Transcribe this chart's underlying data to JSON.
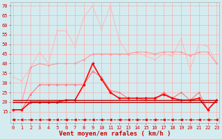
{
  "x": [
    0,
    1,
    2,
    3,
    4,
    5,
    6,
    7,
    8,
    9,
    10,
    11,
    12,
    13,
    14,
    15,
    16,
    17,
    18,
    19,
    20,
    21,
    22,
    23
  ],
  "series": [
    {
      "label": "rafales_lightest",
      "color": "#ffbbbb",
      "linewidth": 0.8,
      "marker": "o",
      "markersize": 1.5,
      "y": [
        33,
        31,
        38,
        46,
        40,
        57,
        57,
        49,
        64,
        70,
        58,
        70,
        52,
        45,
        46,
        44,
        42,
        45,
        44,
        53,
        37,
        50,
        49,
        40
      ]
    },
    {
      "label": "rafales_medium_pink",
      "color": "#ff9999",
      "linewidth": 0.8,
      "marker": "o",
      "markersize": 1.5,
      "y": [
        20,
        20,
        38,
        40,
        39,
        40,
        40,
        40,
        42,
        45,
        45,
        45,
        45,
        45,
        46,
        46,
        45,
        46,
        46,
        46,
        44,
        46,
        46,
        40
      ]
    },
    {
      "label": "rafales_darker_pink",
      "color": "#ff7777",
      "linewidth": 0.8,
      "marker": "o",
      "markersize": 1.5,
      "y": [
        16,
        16,
        24,
        29,
        29,
        29,
        29,
        29,
        29,
        36,
        33,
        26,
        25,
        22,
        22,
        21,
        21,
        25,
        22,
        25,
        21,
        25,
        16,
        21
      ]
    },
    {
      "label": "vent_moyen_red_marker",
      "color": "#ff0000",
      "linewidth": 1.2,
      "marker": "D",
      "markersize": 1.8,
      "y": [
        16,
        16,
        20,
        20,
        20,
        20,
        21,
        21,
        29,
        40,
        32,
        25,
        22,
        22,
        22,
        22,
        22,
        24,
        22,
        21,
        21,
        22,
        16,
        21
      ]
    },
    {
      "label": "vent_flat_dark1",
      "color": "#bb0000",
      "linewidth": 1.0,
      "marker": null,
      "markersize": 0,
      "y": [
        20,
        20,
        20,
        20,
        20,
        20,
        20,
        20,
        20,
        20,
        20,
        20,
        20,
        20,
        20,
        20,
        20,
        20,
        20,
        20,
        20,
        20,
        20,
        20
      ]
    },
    {
      "label": "vent_flat_dark2",
      "color": "#bb0000",
      "linewidth": 1.0,
      "marker": null,
      "markersize": 0,
      "y": [
        21,
        21,
        21,
        21,
        21,
        21,
        21,
        21,
        21,
        21,
        21,
        21,
        21,
        21,
        21,
        21,
        21,
        21,
        21,
        21,
        21,
        21,
        21,
        21
      ]
    },
    {
      "label": "arrows_dashed",
      "color": "#dd0000",
      "linewidth": 0.7,
      "linestyle": "--",
      "marker": "<",
      "markersize": 2.5,
      "y": [
        11,
        11,
        11,
        11,
        11,
        11,
        11,
        11,
        11,
        11,
        11,
        11,
        11,
        11,
        11,
        11,
        11,
        11,
        11,
        11,
        11,
        11,
        11,
        11
      ]
    }
  ],
  "yticks": [
    15,
    20,
    25,
    30,
    35,
    40,
    45,
    50,
    55,
    60,
    65,
    70
  ],
  "ylim": [
    9,
    72
  ],
  "xlim": [
    -0.3,
    23.3
  ],
  "xticks": [
    0,
    1,
    2,
    3,
    4,
    5,
    6,
    7,
    8,
    9,
    10,
    11,
    12,
    13,
    14,
    15,
    16,
    17,
    18,
    19,
    20,
    21,
    22,
    23
  ],
  "xlabel": "Vent moyen/en rafales ( km/h )",
  "bg_color": "#d4ecf0",
  "grid_color": "#ffaaaa",
  "text_color": "#cc0000",
  "tick_fontsize": 5.0,
  "label_fontsize": 6.5
}
